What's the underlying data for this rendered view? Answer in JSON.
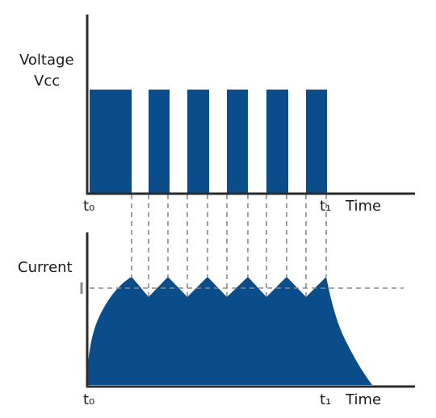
{
  "top_panel": {
    "y_label_line1": "Voltage",
    "y_label_line2": "Vcc",
    "x_start_label": "t₀",
    "x_end_label": "t₁",
    "x_axis_label": "Time"
  },
  "bottom_panel": {
    "y_label": "Current",
    "x_start_label": "t₀",
    "x_end_label": "t₁",
    "x_axis_label": "Time"
  },
  "colors": {
    "fill": "#0b4d8a",
    "axis": "#2b2b2b",
    "dashed": "#8a8a8a"
  }
}
